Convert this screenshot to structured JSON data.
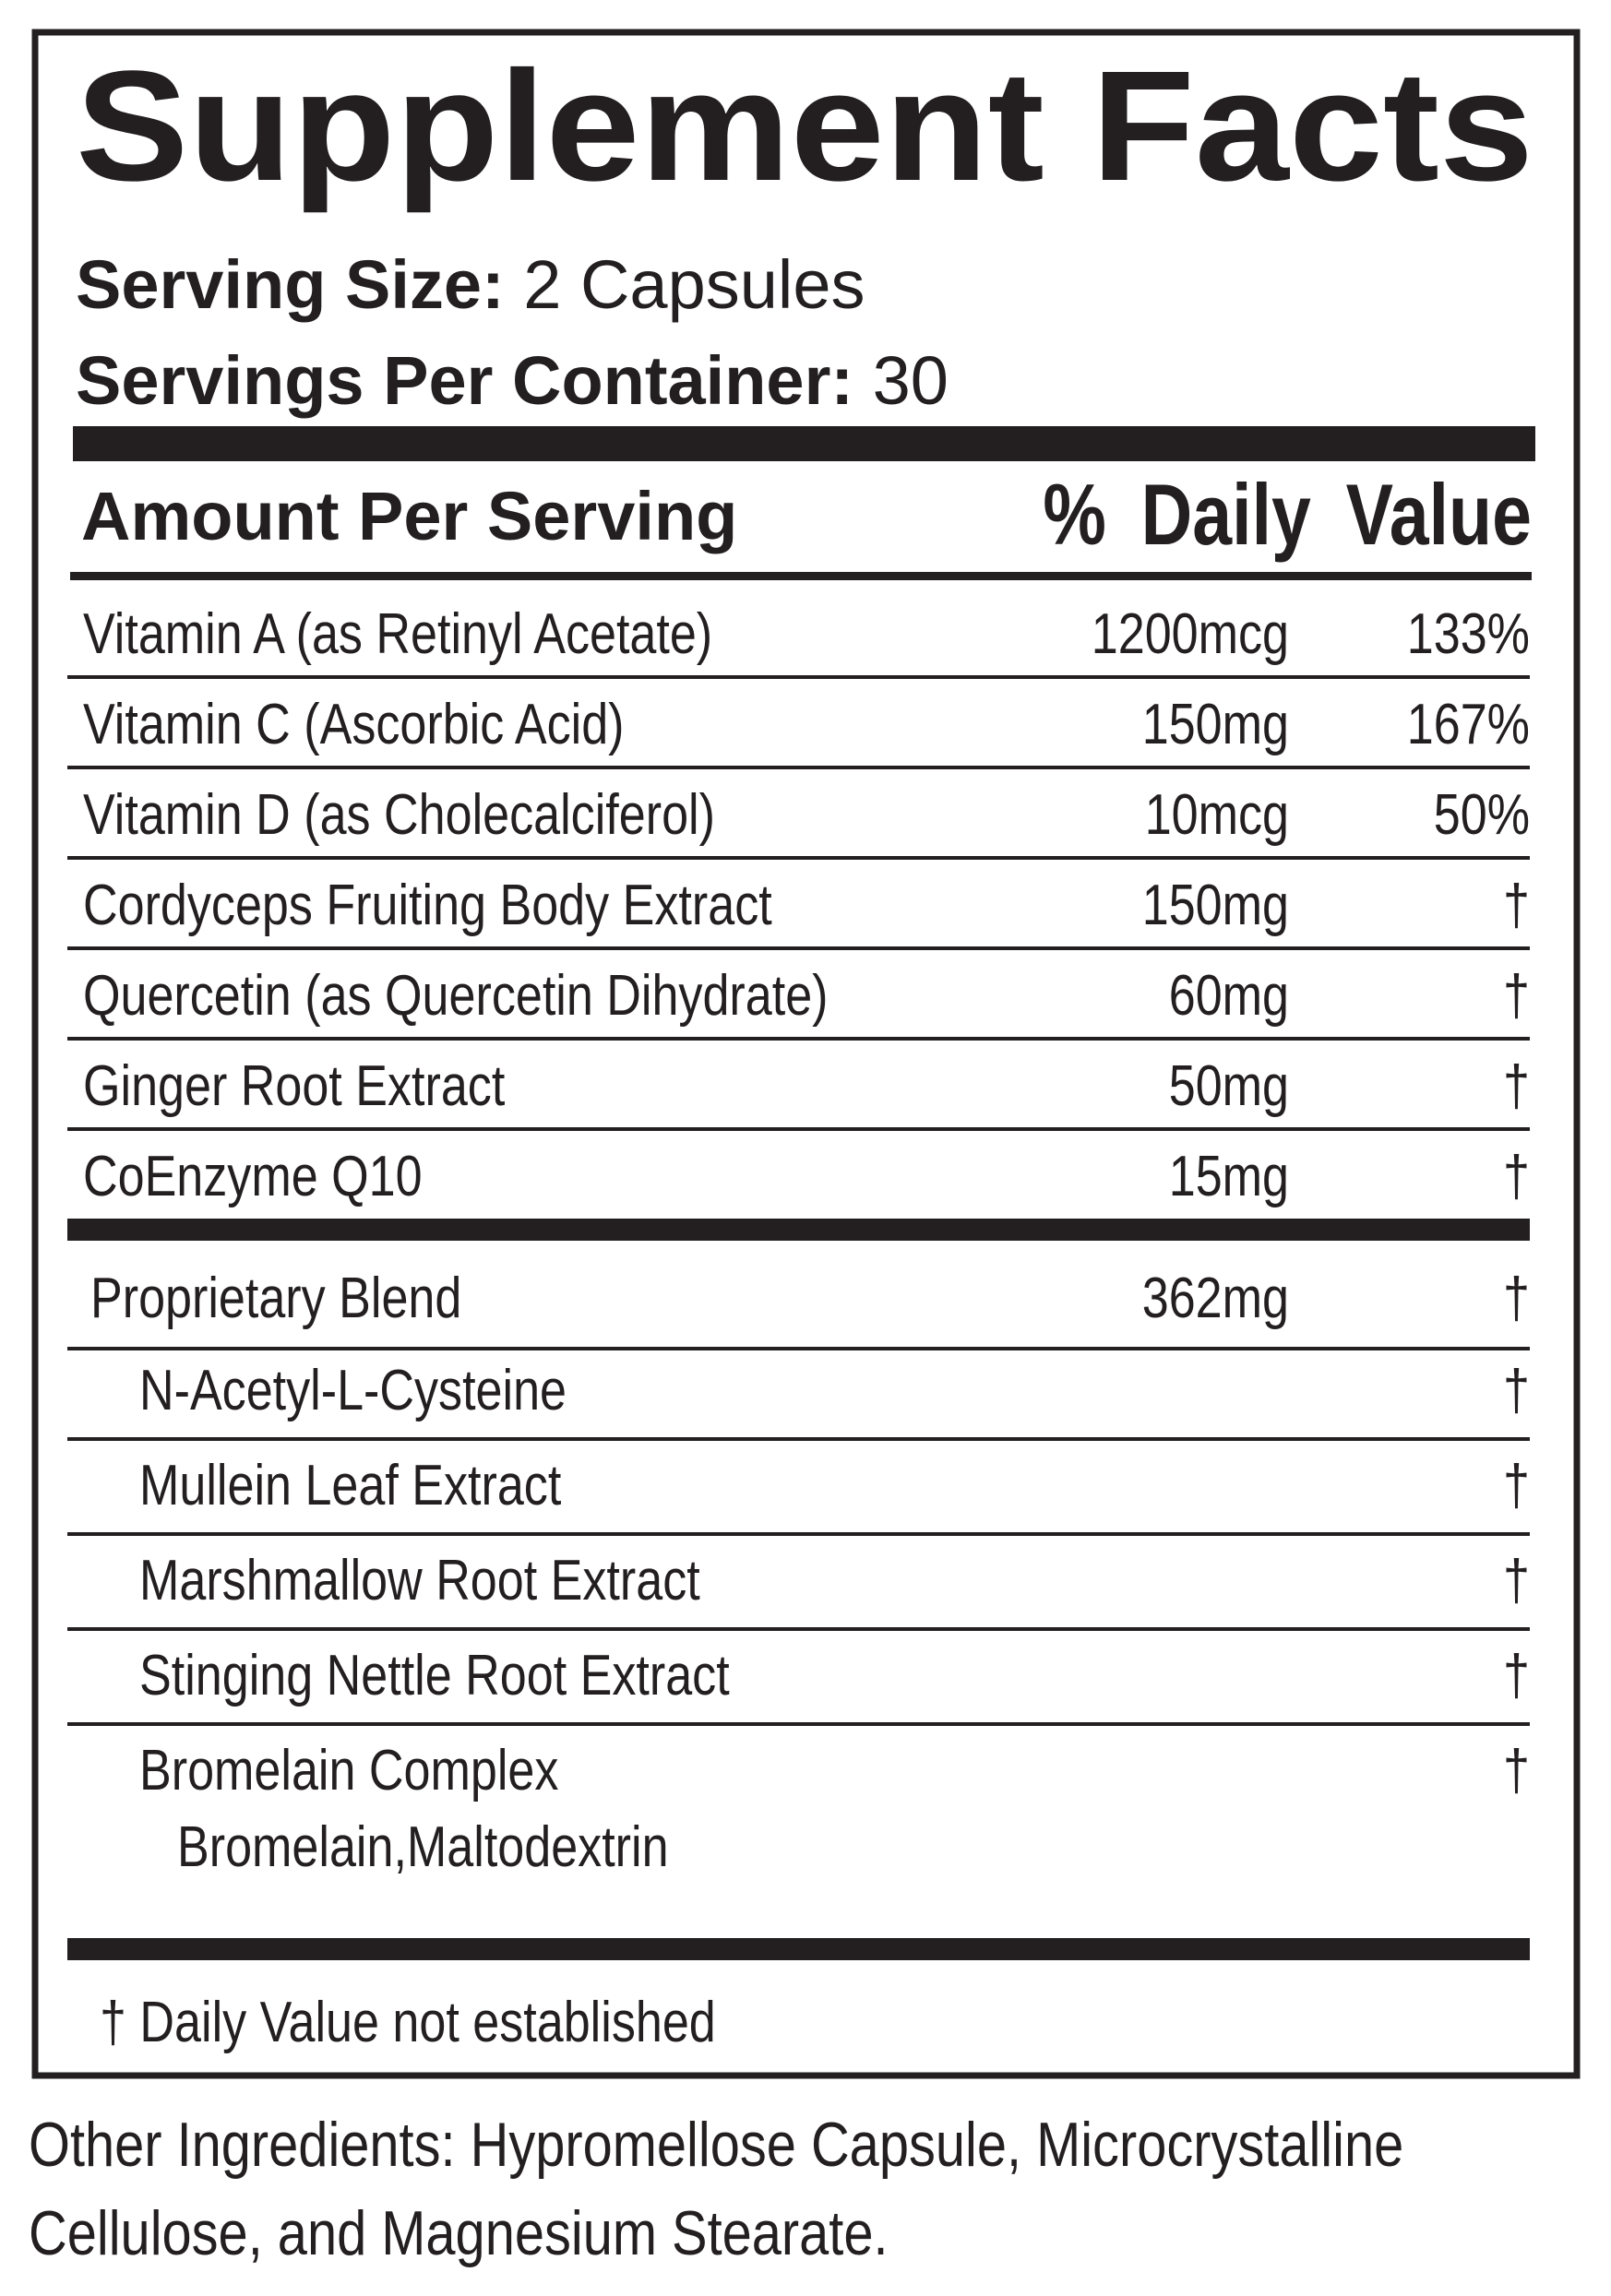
{
  "header": {
    "title": "Supplement Facts",
    "serving_size": {
      "label": "Serving Size:",
      "value": "2 Capsules"
    },
    "servings_per_container": {
      "label": "Servings Per Container:",
      "value": "30"
    }
  },
  "table": {
    "columns": [
      "Amount Per Serving",
      "% Daily Value"
    ],
    "rows": [
      {
        "name": "Vitamin A (as Retinyl Acetate)",
        "amount": "1200mcg",
        "daily_value": "133%"
      },
      {
        "name": "Vitamin C (Ascorbic Acid)",
        "amount": "150mg",
        "daily_value": "167%"
      },
      {
        "name": "Vitamin D (as Cholecalciferol)",
        "amount": "10mcg",
        "daily_value": "50%"
      },
      {
        "name": "Cordyceps Fruiting Body Extract",
        "amount": "150mg",
        "daily_value": "†"
      },
      {
        "name": "Quercetin (as Quercetin Dihydrate)",
        "amount": "60mg",
        "daily_value": "†"
      },
      {
        "name": "Ginger Root Extract",
        "amount": "50mg",
        "daily_value": "†"
      },
      {
        "name": "CoEnzyme Q10",
        "amount": "15mg",
        "daily_value": "†"
      }
    ],
    "proprietary_blend": {
      "name": "Proprietary Blend",
      "amount": "362mg",
      "daily_value": "†",
      "ingredients": [
        {
          "name": "N-Acetyl-L-Cysteine",
          "daily_value": "†"
        },
        {
          "name": "Mullein Leaf Extract",
          "daily_value": "†"
        },
        {
          "name": "Marshmallow Root Extract",
          "daily_value": "†"
        },
        {
          "name": "Stinging Nettle Root Extract",
          "daily_value": "†"
        },
        {
          "name": "Bromelain Complex",
          "daily_value": "†",
          "detail": "Bromelain,Maltodextrin"
        }
      ]
    }
  },
  "footnote": "† Daily Value not established",
  "other_ingredients": [
    "Other Ingredients: Hypromellose Capsule, Microcrystalline",
    "Cellulose, and Magnesium Stearate."
  ]
}
